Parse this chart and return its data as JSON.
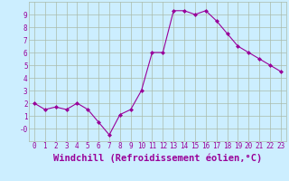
{
  "x": [
    0,
    1,
    2,
    3,
    4,
    5,
    6,
    7,
    8,
    9,
    10,
    11,
    12,
    13,
    14,
    15,
    16,
    17,
    18,
    19,
    20,
    21,
    22,
    23
  ],
  "y": [
    2.0,
    1.5,
    1.7,
    1.5,
    2.0,
    1.5,
    0.5,
    -0.5,
    1.1,
    1.5,
    3.0,
    6.0,
    6.0,
    9.3,
    9.3,
    9.0,
    9.3,
    8.5,
    7.5,
    6.5,
    6.0,
    5.5,
    5.0,
    4.5
  ],
  "line_color": "#990099",
  "marker": "D",
  "marker_size": 2,
  "bg_color": "#cceeff",
  "grid_color": "#aabbaa",
  "xlabel": "Windchill (Refroidissement éolien,°C)",
  "xlim": [
    -0.5,
    23.5
  ],
  "ylim": [
    -1.0,
    10.0
  ],
  "yticks": [
    0,
    1,
    2,
    3,
    4,
    5,
    6,
    7,
    8,
    9
  ],
  "ytick_labels": [
    "-0",
    "1",
    "2",
    "3",
    "4",
    "5",
    "6",
    "7",
    "8",
    "9"
  ],
  "xticks": [
    0,
    1,
    2,
    3,
    4,
    5,
    6,
    7,
    8,
    9,
    10,
    11,
    12,
    13,
    14,
    15,
    16,
    17,
    18,
    19,
    20,
    21,
    22,
    23
  ],
  "font_color": "#990099",
  "tick_fontsize": 5.5,
  "xlabel_fontsize": 7.5
}
